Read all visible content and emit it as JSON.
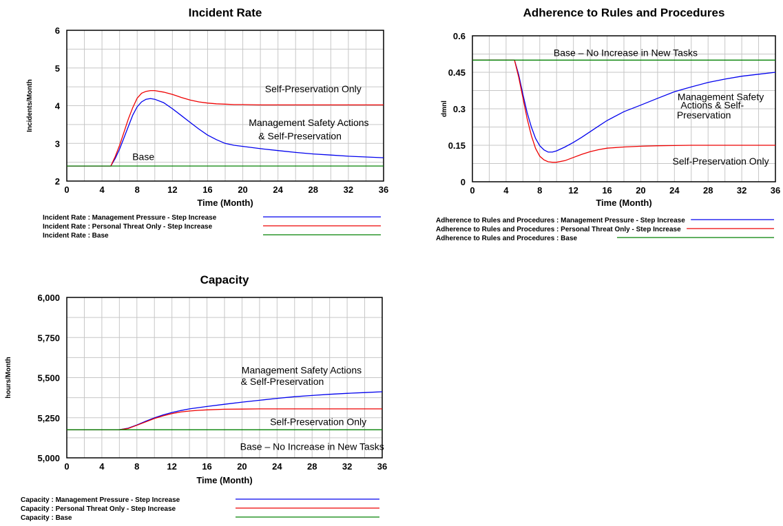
{
  "chart_data": [
    {
      "type": "line",
      "title": "Incident Rate",
      "xlabel": "Time (Month)",
      "ylabel": "Incidents/Month",
      "xlim": [
        0,
        36
      ],
      "ylim": [
        2,
        6
      ],
      "x_ticks": [
        "0",
        "4",
        "8",
        "12",
        "16",
        "20",
        "24",
        "28",
        "32",
        "36"
      ],
      "y_ticks": [
        "2",
        "3",
        "4",
        "5",
        "6"
      ],
      "grid": true,
      "annotations": [
        {
          "text": "Self-Preservation Only",
          "x": 28,
          "y": 4.45
        },
        {
          "text": "Management Safety Actions",
          "x": 27.5,
          "y": 3.55
        },
        {
          "text": "& Self-Preservation",
          "x": 26.5,
          "y": 3.2
        },
        {
          "text": "Base",
          "x": 8.7,
          "y": 2.65
        }
      ],
      "series": [
        {
          "name": "Incident Rate : Management Pressure - Step Increase",
          "color": "#0000ee",
          "x": [
            0,
            5,
            5.5,
            6,
            6.5,
            7,
            7.5,
            8,
            8.5,
            9,
            9.5,
            10,
            11,
            12,
            13,
            14,
            15,
            16,
            17,
            18,
            19,
            20,
            22,
            24,
            26,
            28,
            30,
            32,
            34,
            36
          ],
          "y": [
            2.4,
            2.4,
            2.6,
            2.85,
            3.15,
            3.45,
            3.75,
            3.97,
            4.1,
            4.17,
            4.19,
            4.17,
            4.08,
            3.92,
            3.74,
            3.56,
            3.38,
            3.22,
            3.1,
            3.0,
            2.95,
            2.92,
            2.86,
            2.81,
            2.76,
            2.72,
            2.69,
            2.66,
            2.64,
            2.62
          ]
        },
        {
          "name": "Incident Rate : Personal Threat Only - Step Increase",
          "color": "#ee0000",
          "x": [
            0,
            5,
            5.5,
            6,
            6.5,
            7,
            7.5,
            8,
            8.5,
            9,
            9.5,
            10,
            11,
            12,
            13,
            14,
            15,
            16,
            17,
            18,
            19,
            20,
            22,
            24,
            26,
            28,
            30,
            32,
            34,
            36
          ],
          "y": [
            2.4,
            2.4,
            2.65,
            2.95,
            3.3,
            3.65,
            3.95,
            4.2,
            4.33,
            4.38,
            4.4,
            4.4,
            4.36,
            4.3,
            4.22,
            4.15,
            4.1,
            4.07,
            4.05,
            4.04,
            4.03,
            4.03,
            4.02,
            4.02,
            4.02,
            4.02,
            4.02,
            4.02,
            4.02,
            4.02
          ]
        },
        {
          "name": "Incident Rate : Base",
          "color": "#008000",
          "x": [
            0,
            36
          ],
          "y": [
            2.4,
            2.4
          ]
        }
      ],
      "legend": {
        "entries": [
          "Incident Rate : Management Pressure - Step Increase",
          "Incident Rate : Personal Threat Only - Step Increase",
          "Incident Rate : Base"
        ]
      }
    },
    {
      "type": "line",
      "title": "Adherence to Rules and Procedures",
      "xlabel": "Time (Month)",
      "ylabel": "dmnl",
      "xlim": [
        0,
        36
      ],
      "ylim": [
        0,
        0.6
      ],
      "x_ticks": [
        "0",
        "4",
        "8",
        "12",
        "16",
        "20",
        "24",
        "28",
        "32",
        "36"
      ],
      "y_ticks": [
        "0",
        "0.15",
        "0.3",
        "0.45",
        "0.6"
      ],
      "grid": true,
      "annotations": [
        {
          "text": "Base – No Increase in New Tasks",
          "x": 18.2,
          "y": 0.53
        },
        {
          "text": "Management Safety",
          "x": 29.5,
          "y": 0.35
        },
        {
          "text": "Actions & Self-",
          "x": 28.5,
          "y": 0.315
        },
        {
          "text": "Preservation",
          "x": 27.5,
          "y": 0.275
        },
        {
          "text": "Self-Preservation Only",
          "x": 29.5,
          "y": 0.085
        }
      ],
      "series": [
        {
          "name": "Adherence to Rules and Procedures : Management Pressure - Step Increase",
          "color": "#0000ee",
          "x": [
            0,
            5,
            5.5,
            6,
            6.5,
            7,
            7.5,
            8,
            8.5,
            9,
            9.5,
            10,
            11,
            12,
            13,
            14,
            15,
            16,
            18,
            20,
            22,
            24,
            26,
            28,
            30,
            32,
            34,
            36
          ],
          "y": [
            0.5,
            0.5,
            0.44,
            0.36,
            0.285,
            0.225,
            0.178,
            0.148,
            0.131,
            0.122,
            0.122,
            0.127,
            0.143,
            0.162,
            0.183,
            0.206,
            0.229,
            0.252,
            0.288,
            0.315,
            0.343,
            0.37,
            0.39,
            0.408,
            0.422,
            0.434,
            0.442,
            0.45
          ]
        },
        {
          "name": "Adherence to Rules and Procedures : Personal Threat Only - Step Increase",
          "color": "#ee0000",
          "x": [
            0,
            5,
            5.5,
            6,
            6.5,
            7,
            7.5,
            8,
            8.5,
            9,
            9.5,
            10,
            11,
            12,
            13,
            14,
            15,
            16,
            18,
            20,
            22,
            24,
            26,
            28,
            30,
            32,
            34,
            36
          ],
          "y": [
            0.5,
            0.5,
            0.43,
            0.345,
            0.26,
            0.19,
            0.137,
            0.105,
            0.09,
            0.082,
            0.08,
            0.08,
            0.087,
            0.1,
            0.113,
            0.124,
            0.132,
            0.138,
            0.143,
            0.146,
            0.148,
            0.149,
            0.15,
            0.15,
            0.15,
            0.15,
            0.15,
            0.15
          ]
        },
        {
          "name": "Adherence to Rules and Procedures : Base",
          "color": "#008000",
          "x": [
            0,
            36
          ],
          "y": [
            0.5,
            0.5
          ]
        }
      ],
      "legend": {
        "entries": [
          "Adherence to Rules and Procedures : Management Pressure - Step Increase",
          "Adherence to Rules and Procedures : Personal Threat Only - Step Increase",
          "Adherence to Rules and Procedures : Base"
        ]
      }
    },
    {
      "type": "line",
      "title": "Capacity",
      "xlabel": "Time (Month)",
      "ylabel": "hours/Month",
      "xlim": [
        0,
        36
      ],
      "ylim": [
        5000,
        6000
      ],
      "x_ticks": [
        "0",
        "4",
        "8",
        "12",
        "16",
        "20",
        "24",
        "28",
        "32",
        "36"
      ],
      "y_ticks": [
        "5,000",
        "5,250",
        "5,500",
        "5,750",
        "6,000"
      ],
      "grid": true,
      "annotations": [
        {
          "text": "Management Safety Actions",
          "x": 26.8,
          "y": 5548
        },
        {
          "text": "& Self-Preservation",
          "x": 24.6,
          "y": 5477
        },
        {
          "text": "Self-Preservation Only",
          "x": 28.7,
          "y": 5225
        },
        {
          "text": "Base – No Increase in New Tasks",
          "x": 28,
          "y": 5070
        }
      ],
      "series": [
        {
          "name": "Capacity : Management Pressure - Step Increase",
          "color": "#0000ee",
          "x": [
            0,
            6,
            7,
            8,
            9,
            10,
            11,
            12,
            13,
            14,
            15,
            16,
            18,
            20,
            22,
            24,
            26,
            28,
            30,
            32,
            34,
            36
          ],
          "y": [
            5175,
            5175,
            5185,
            5205,
            5228,
            5250,
            5268,
            5283,
            5295,
            5305,
            5313,
            5320,
            5334,
            5347,
            5359,
            5371,
            5381,
            5389,
            5396,
            5402,
            5407,
            5412
          ]
        },
        {
          "name": "Capacity : Personal Threat Only - Step Increase",
          "color": "#ee0000",
          "x": [
            0,
            6,
            7,
            8,
            9,
            10,
            11,
            12,
            13,
            14,
            15,
            16,
            18,
            20,
            22,
            24,
            26,
            28,
            30,
            32,
            34,
            36
          ],
          "y": [
            5175,
            5175,
            5183,
            5203,
            5224,
            5245,
            5262,
            5276,
            5286,
            5292,
            5296,
            5299,
            5303,
            5304,
            5305,
            5305,
            5305,
            5305,
            5305,
            5305,
            5305,
            5305
          ]
        },
        {
          "name": "Capacity : Base",
          "color": "#008000",
          "x": [
            0,
            36
          ],
          "y": [
            5175,
            5175
          ]
        }
      ],
      "legend": {
        "entries": [
          "Capacity : Management Pressure - Step Increase",
          "Capacity : Personal Threat Only - Step Increase",
          "Capacity : Base"
        ]
      }
    }
  ]
}
